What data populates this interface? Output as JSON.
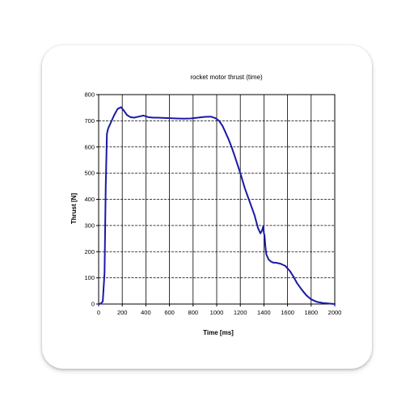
{
  "chart_data": {
    "type": "line",
    "title": "rocket motor thrust (time)",
    "xlabel": "Time [ms]",
    "ylabel": "Thrust [N]",
    "xlim": [
      0,
      2000
    ],
    "ylim": [
      0,
      800
    ],
    "xticks": [
      0,
      200,
      400,
      600,
      800,
      1000,
      1200,
      1400,
      1600,
      1800,
      2000
    ],
    "yticks": [
      0,
      100,
      200,
      300,
      400,
      500,
      600,
      700,
      800
    ],
    "grid": true,
    "legend": "none",
    "series": [
      {
        "color": "#1a1aa6",
        "x": [
          0,
          20,
          35,
          50,
          60,
          70,
          80,
          100,
          130,
          160,
          190,
          215,
          240,
          270,
          300,
          340,
          380,
          420,
          460,
          500,
          540,
          600,
          660,
          720,
          780,
          840,
          900,
          950,
          990,
          1020,
          1050,
          1070,
          1100,
          1130,
          1160,
          1200,
          1240,
          1280,
          1320,
          1350,
          1370,
          1385,
          1395,
          1400,
          1405,
          1412,
          1420,
          1440,
          1460,
          1480,
          1500,
          1540,
          1580,
          1620,
          1650,
          1680,
          1720,
          1760,
          1800,
          1850,
          1900,
          1950,
          2000
        ],
        "y": [
          0,
          2,
          10,
          120,
          450,
          650,
          670,
          690,
          720,
          745,
          752,
          738,
          722,
          714,
          712,
          716,
          720,
          714,
          712,
          712,
          711,
          710,
          709,
          708,
          709,
          712,
          715,
          716,
          710,
          700,
          680,
          660,
          630,
          595,
          555,
          500,
          440,
          390,
          340,
          290,
          270,
          282,
          298,
          270,
          262,
          222,
          190,
          170,
          162,
          158,
          158,
          154,
          146,
          126,
          105,
          80,
          55,
          33,
          18,
          8,
          4,
          2,
          0
        ]
      }
    ]
  }
}
